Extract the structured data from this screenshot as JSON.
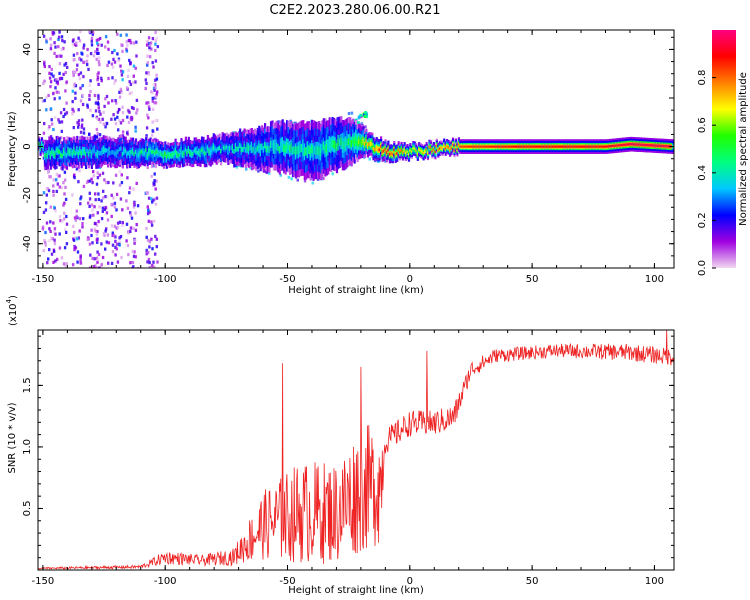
{
  "title": "C2E2.2023.280.06.00.R21",
  "colors": {
    "snr_line": "#ee2222",
    "axis": "#000000"
  },
  "chart_data": [
    {
      "type": "heatmap",
      "xlabel": "Height of straight line (km)",
      "ylabel": "Frequency (Hz)",
      "xlim": [
        -152,
        108
      ],
      "ylim": [
        -50,
        48
      ],
      "xticks": [
        -150,
        -100,
        -50,
        0,
        50,
        100
      ],
      "yticks": [
        -40,
        -20,
        0,
        20,
        40
      ],
      "colorbar": {
        "label": "Normalized spectral amplitude",
        "range": [
          0,
          1
        ],
        "ticks": [
          "0.0",
          "0.2",
          "0.4",
          "0.6",
          "0.8"
        ],
        "colormap": [
          "#f0d8f0",
          "#a000e0",
          "#0000ff",
          "#00c8ff",
          "#00ff80",
          "#20ff00",
          "#ffff00",
          "#ff8000",
          "#ff0000",
          "#ff0080"
        ]
      },
      "ridge": [
        {
          "x": -150,
          "f": -3,
          "width": 6,
          "amp": 0.45
        },
        {
          "x": -120,
          "f": -2,
          "width": 6,
          "amp": 0.35
        },
        {
          "x": -100,
          "f": -3,
          "width": 5,
          "amp": 0.5
        },
        {
          "x": -75,
          "f": -1,
          "width": 6,
          "amp": 0.35
        },
        {
          "x": -55,
          "f": 0,
          "width": 10,
          "amp": 0.4
        },
        {
          "x": -40,
          "f": -2,
          "width": 12,
          "amp": 0.4
        },
        {
          "x": -25,
          "f": 2,
          "width": 10,
          "amp": 0.45
        },
        {
          "x": -18,
          "f": 1,
          "width": 5,
          "amp": 0.7
        },
        {
          "x": -10,
          "f": -2,
          "width": 4,
          "amp": 0.85
        },
        {
          "x": 0,
          "f": -2,
          "width": 3,
          "amp": 0.7
        },
        {
          "x": 20,
          "f": 0,
          "width": 3,
          "amp": 0.85
        },
        {
          "x": 50,
          "f": 0,
          "width": 3,
          "amp": 0.9
        },
        {
          "x": 80,
          "f": 0,
          "width": 3,
          "amp": 0.9
        },
        {
          "x": 90,
          "f": 1,
          "width": 3,
          "amp": 0.95
        },
        {
          "x": 107,
          "f": 0,
          "width": 3,
          "amp": 0.95
        }
      ]
    },
    {
      "type": "line",
      "xlabel": "Height of straight line (km)",
      "ylabel": "SNR (10 * v/v)",
      "yscale_label": "(x10",
      "yscale_exponent": "4",
      "xlim": [
        -152,
        108
      ],
      "ylim": [
        0,
        1.95
      ],
      "xticks": [
        -150,
        -100,
        -50,
        0,
        50,
        100
      ],
      "yticks": [
        0.5,
        1.0,
        1.5
      ],
      "ytick_labels": [
        "0.5",
        "1.0",
        "1.5"
      ],
      "envelope": [
        {
          "x": -152,
          "base": 0.01,
          "noise": 0.01
        },
        {
          "x": -110,
          "base": 0.02,
          "noise": 0.02
        },
        {
          "x": -100,
          "base": 0.08,
          "noise": 0.08
        },
        {
          "x": -85,
          "base": 0.06,
          "noise": 0.06
        },
        {
          "x": -72,
          "base": 0.08,
          "noise": 0.1
        },
        {
          "x": -60,
          "base": 0.25,
          "noise": 0.4
        },
        {
          "x": -45,
          "base": 0.3,
          "noise": 0.6
        },
        {
          "x": -30,
          "base": 0.3,
          "noise": 0.6
        },
        {
          "x": -20,
          "base": 0.45,
          "noise": 0.75
        },
        {
          "x": -12,
          "base": 0.5,
          "noise": 0.7
        },
        {
          "x": -10,
          "base": 1.0,
          "noise": 0.15
        },
        {
          "x": 0,
          "base": 1.15,
          "noise": 0.15
        },
        {
          "x": 10,
          "base": 1.15,
          "noise": 0.15
        },
        {
          "x": 18,
          "base": 1.2,
          "noise": 0.15
        },
        {
          "x": 25,
          "base": 1.6,
          "noise": 0.1
        },
        {
          "x": 35,
          "base": 1.72,
          "noise": 0.08
        },
        {
          "x": 60,
          "base": 1.76,
          "noise": 0.08
        },
        {
          "x": 90,
          "base": 1.74,
          "noise": 0.1
        },
        {
          "x": 108,
          "base": 1.7,
          "noise": 0.1
        }
      ],
      "peaks": [
        {
          "x": -52,
          "y": 1.68
        },
        {
          "x": -20,
          "y": 1.65
        },
        {
          "x": 7,
          "y": 1.78
        },
        {
          "x": 105,
          "y": 1.95
        }
      ]
    }
  ]
}
